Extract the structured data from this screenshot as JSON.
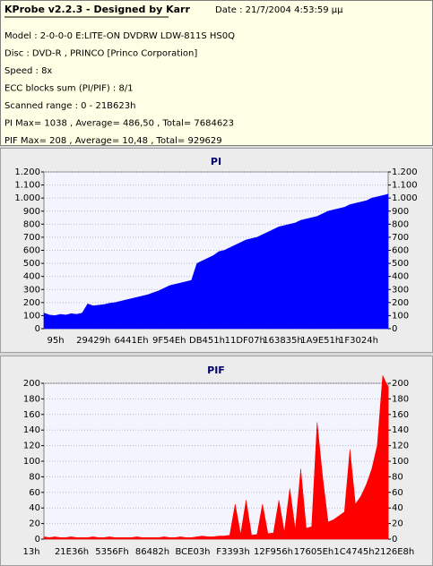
{
  "header": {
    "title": "KProbe v2.2.3 - Designed by Karr",
    "date": "Date : 21/7/2004 4:53:59 μμ",
    "lines": [
      "Model : 2-0-0-0 E:LITE-ON DVDRW LDW-811S   HS0Q",
      "Disc : DVD-R , PRINCO [Princo Corporation]",
      "Speed : 8x",
      "ECC blocks sum (PI/PIF) : 8/1",
      "Scanned range : 0 - 21B623h",
      "PI Max= 1038 , Average= 486,50 , Total= 7684623",
      "PIF Max= 208 , Average= 10,48 , Total= 929629"
    ]
  },
  "chart_data": [
    {
      "type": "area",
      "title": "PI",
      "xtick_labels": [
        "95h",
        "29429h",
        "6441Eh",
        "9F54Eh",
        "DB451h",
        "11DF07h",
        "163835h",
        "1A9E51h",
        "1F3024h"
      ],
      "ylim": [
        0,
        1200
      ],
      "yticks": [
        0,
        100,
        200,
        300,
        400,
        500,
        600,
        700,
        800,
        900,
        {
          "value": 1000,
          "label": "1.000"
        },
        {
          "value": 1100,
          "label": "1.100"
        },
        {
          "value": 1200,
          "label": "1.200"
        }
      ],
      "grid": true,
      "series": [
        {
          "name": "PI",
          "color": "#0000ff",
          "values": [
            120,
            105,
            100,
            110,
            105,
            115,
            110,
            120,
            190,
            175,
            180,
            185,
            195,
            200,
            210,
            220,
            230,
            240,
            250,
            260,
            275,
            290,
            310,
            330,
            340,
            350,
            360,
            370,
            500,
            520,
            540,
            560,
            590,
            600,
            620,
            640,
            660,
            680,
            690,
            700,
            720,
            740,
            760,
            780,
            790,
            800,
            810,
            830,
            840,
            850,
            860,
            880,
            900,
            910,
            920,
            930,
            950,
            960,
            970,
            980,
            1000,
            1010,
            1020,
            1030
          ]
        }
      ]
    },
    {
      "type": "area",
      "title": "PIF",
      "xtick_labels": [
        "13h",
        "21E36h",
        "5356Fh",
        "86482h",
        "BCE03h",
        "F3393h",
        "12F956h",
        "17605Eh",
        "1C4745h",
        "2126E8h"
      ],
      "ylim": [
        0,
        200
      ],
      "yticks": [
        0,
        20,
        40,
        60,
        80,
        100,
        120,
        140,
        160,
        180,
        200
      ],
      "grid": true,
      "series": [
        {
          "name": "PIF",
          "color": "#ff0000",
          "values": [
            3,
            2,
            3,
            2,
            2,
            3,
            2,
            2,
            2,
            3,
            2,
            2,
            3,
            2,
            2,
            2,
            2,
            3,
            2,
            2,
            2,
            2,
            3,
            2,
            2,
            3,
            2,
            2,
            3,
            4,
            3,
            3,
            4,
            4,
            5,
            45,
            6,
            50,
            5,
            6,
            45,
            7,
            8,
            50,
            9,
            65,
            12,
            90,
            14,
            16,
            150,
            80,
            22,
            25,
            30,
            35,
            115,
            45,
            55,
            70,
            90,
            120,
            210,
            195
          ]
        }
      ]
    }
  ]
}
